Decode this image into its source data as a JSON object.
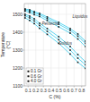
{
  "chart_data": {
    "type": "line",
    "color": "#33ccee",
    "marker": "square",
    "grid": true,
    "legend": "lower left",
    "xlabel": "C (%)",
    "ylabel": "Temperature\n(°C)",
    "xlim": [
      0.05,
      0.85
    ],
    "ylim": [
      1100,
      1560
    ],
    "xticks": [
      0.1,
      0.2,
      0.3,
      0.4,
      0.5,
      0.6,
      0.7,
      0.8
    ],
    "yticks": [
      1100,
      1200,
      1300,
      1400,
      1500
    ],
    "series": [
      {
        "name": "0.1 Gr",
        "color": "#111111",
        "x": [
          0.06,
          0.12,
          0.18,
          0.25,
          0.35,
          0.5,
          0.65,
          0.75,
          0.85
        ],
        "liquidus": [
          1530,
          1525,
          1515,
          1505,
          1485,
          1455,
          1420,
          1390,
          1350
        ],
        "solidus": [
          1500,
          1490,
          1475,
          1450,
          1420,
          1375,
          1320,
          1275,
          1235
        ]
      },
      {
        "name": "0.6 Gr",
        "color": "#111111",
        "x": [
          0.06,
          0.12,
          0.18,
          0.25,
          0.35,
          0.5,
          0.65,
          0.75,
          0.85
        ],
        "liquidus": [
          1525,
          1518,
          1508,
          1498,
          1476,
          1445,
          1410,
          1378,
          1338
        ],
        "solidus": [
          1492,
          1480,
          1463,
          1438,
          1405,
          1358,
          1300,
          1255,
          1218
        ]
      },
      {
        "name": "4.0 Gr",
        "color": "#111111",
        "x": [
          0.06,
          0.12,
          0.18,
          0.25,
          0.35,
          0.5,
          0.65,
          0.75,
          0.85
        ],
        "liquidus": [
          1518,
          1510,
          1498,
          1488,
          1465,
          1430,
          1395,
          1362,
          1320
        ],
        "solidus": [
          1480,
          1466,
          1448,
          1422,
          1388,
          1338,
          1278,
          1232,
          1198
        ]
      }
    ],
    "annotations": [
      {
        "text": "Liquidus",
        "x": 0.68,
        "y": 1480
      },
      {
        "text": "Peritectic",
        "x": 0.28,
        "y": 1438
      },
      {
        "text": "Solidus",
        "x": 0.5,
        "y": 1330
      }
    ]
  }
}
